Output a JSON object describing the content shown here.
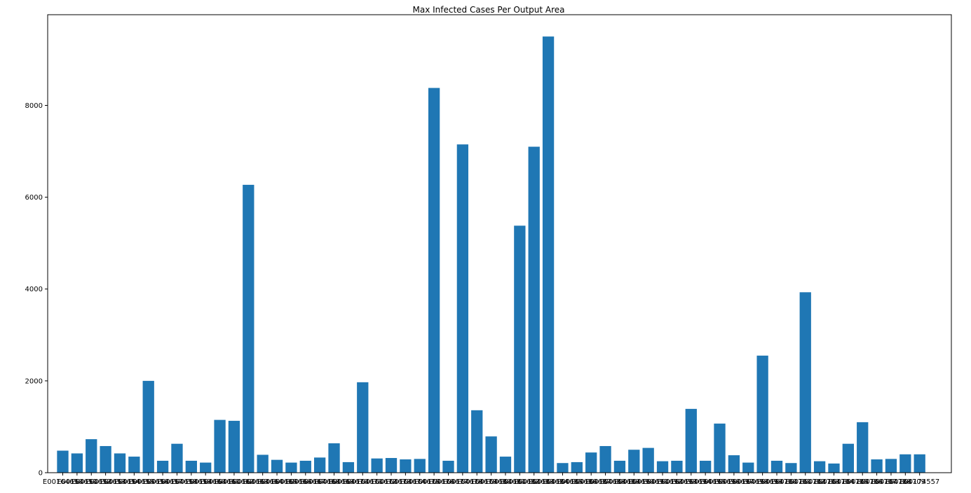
{
  "chart_data": {
    "type": "bar",
    "title": "Max Infected Cases Per Output Area",
    "xlabel": "",
    "ylabel": "",
    "ylim": [
      0,
      9975
    ],
    "yticks": [
      0,
      2000,
      4000,
      6000,
      8000
    ],
    "ytick_labels": [
      "0",
      "2000",
      "4000",
      "6000",
      "8000"
    ],
    "bar_color": "#1f77b4",
    "grid": false,
    "legend": "none",
    "categories": [
      "E00164650",
      "E00164651",
      "E00164652",
      "E00164653",
      "E00164654",
      "E00164655",
      "E00164656",
      "E00164657",
      "E00164658",
      "E00164659",
      "E00164660",
      "E00164661",
      "E00164662",
      "E00164663",
      "E00164664",
      "E00164665",
      "E00164666",
      "E00164667",
      "E00164668",
      "E00164669",
      "E00164670",
      "E00164671",
      "E00164672",
      "E00164673",
      "E00164674",
      "E00164675",
      "E00164676",
      "E00164677",
      "E00164678",
      "E00164679",
      "E00164680",
      "E00164681",
      "E00164682",
      "E00164683",
      "E00164684",
      "E00164685",
      "E00164686",
      "E00164687",
      "E00164688",
      "E00164689",
      "E00164690",
      "E00164691",
      "E00164692",
      "E00164693",
      "E00164694",
      "E00164695",
      "E00164696",
      "E00164697",
      "E00164698",
      "E00164699",
      "E00164700",
      "E00164701",
      "E00164702",
      "E00164703",
      "E00164704",
      "E00164705",
      "E00164706",
      "E00164707",
      "E00164708",
      "E00164709",
      "E00174557"
    ],
    "values": [
      480,
      420,
      730,
      580,
      420,
      350,
      2000,
      260,
      630,
      260,
      220,
      1150,
      1130,
      6270,
      390,
      280,
      220,
      260,
      330,
      640,
      230,
      1970,
      310,
      320,
      290,
      300,
      8380,
      260,
      7150,
      1360,
      790,
      350,
      5380,
      7100,
      9500,
      210,
      230,
      440,
      580,
      260,
      500,
      540,
      250,
      260,
      1390,
      260,
      1070,
      380,
      220,
      2550,
      260,
      210,
      3930,
      250,
      200,
      630,
      1100,
      290,
      300,
      400,
      400
    ]
  }
}
